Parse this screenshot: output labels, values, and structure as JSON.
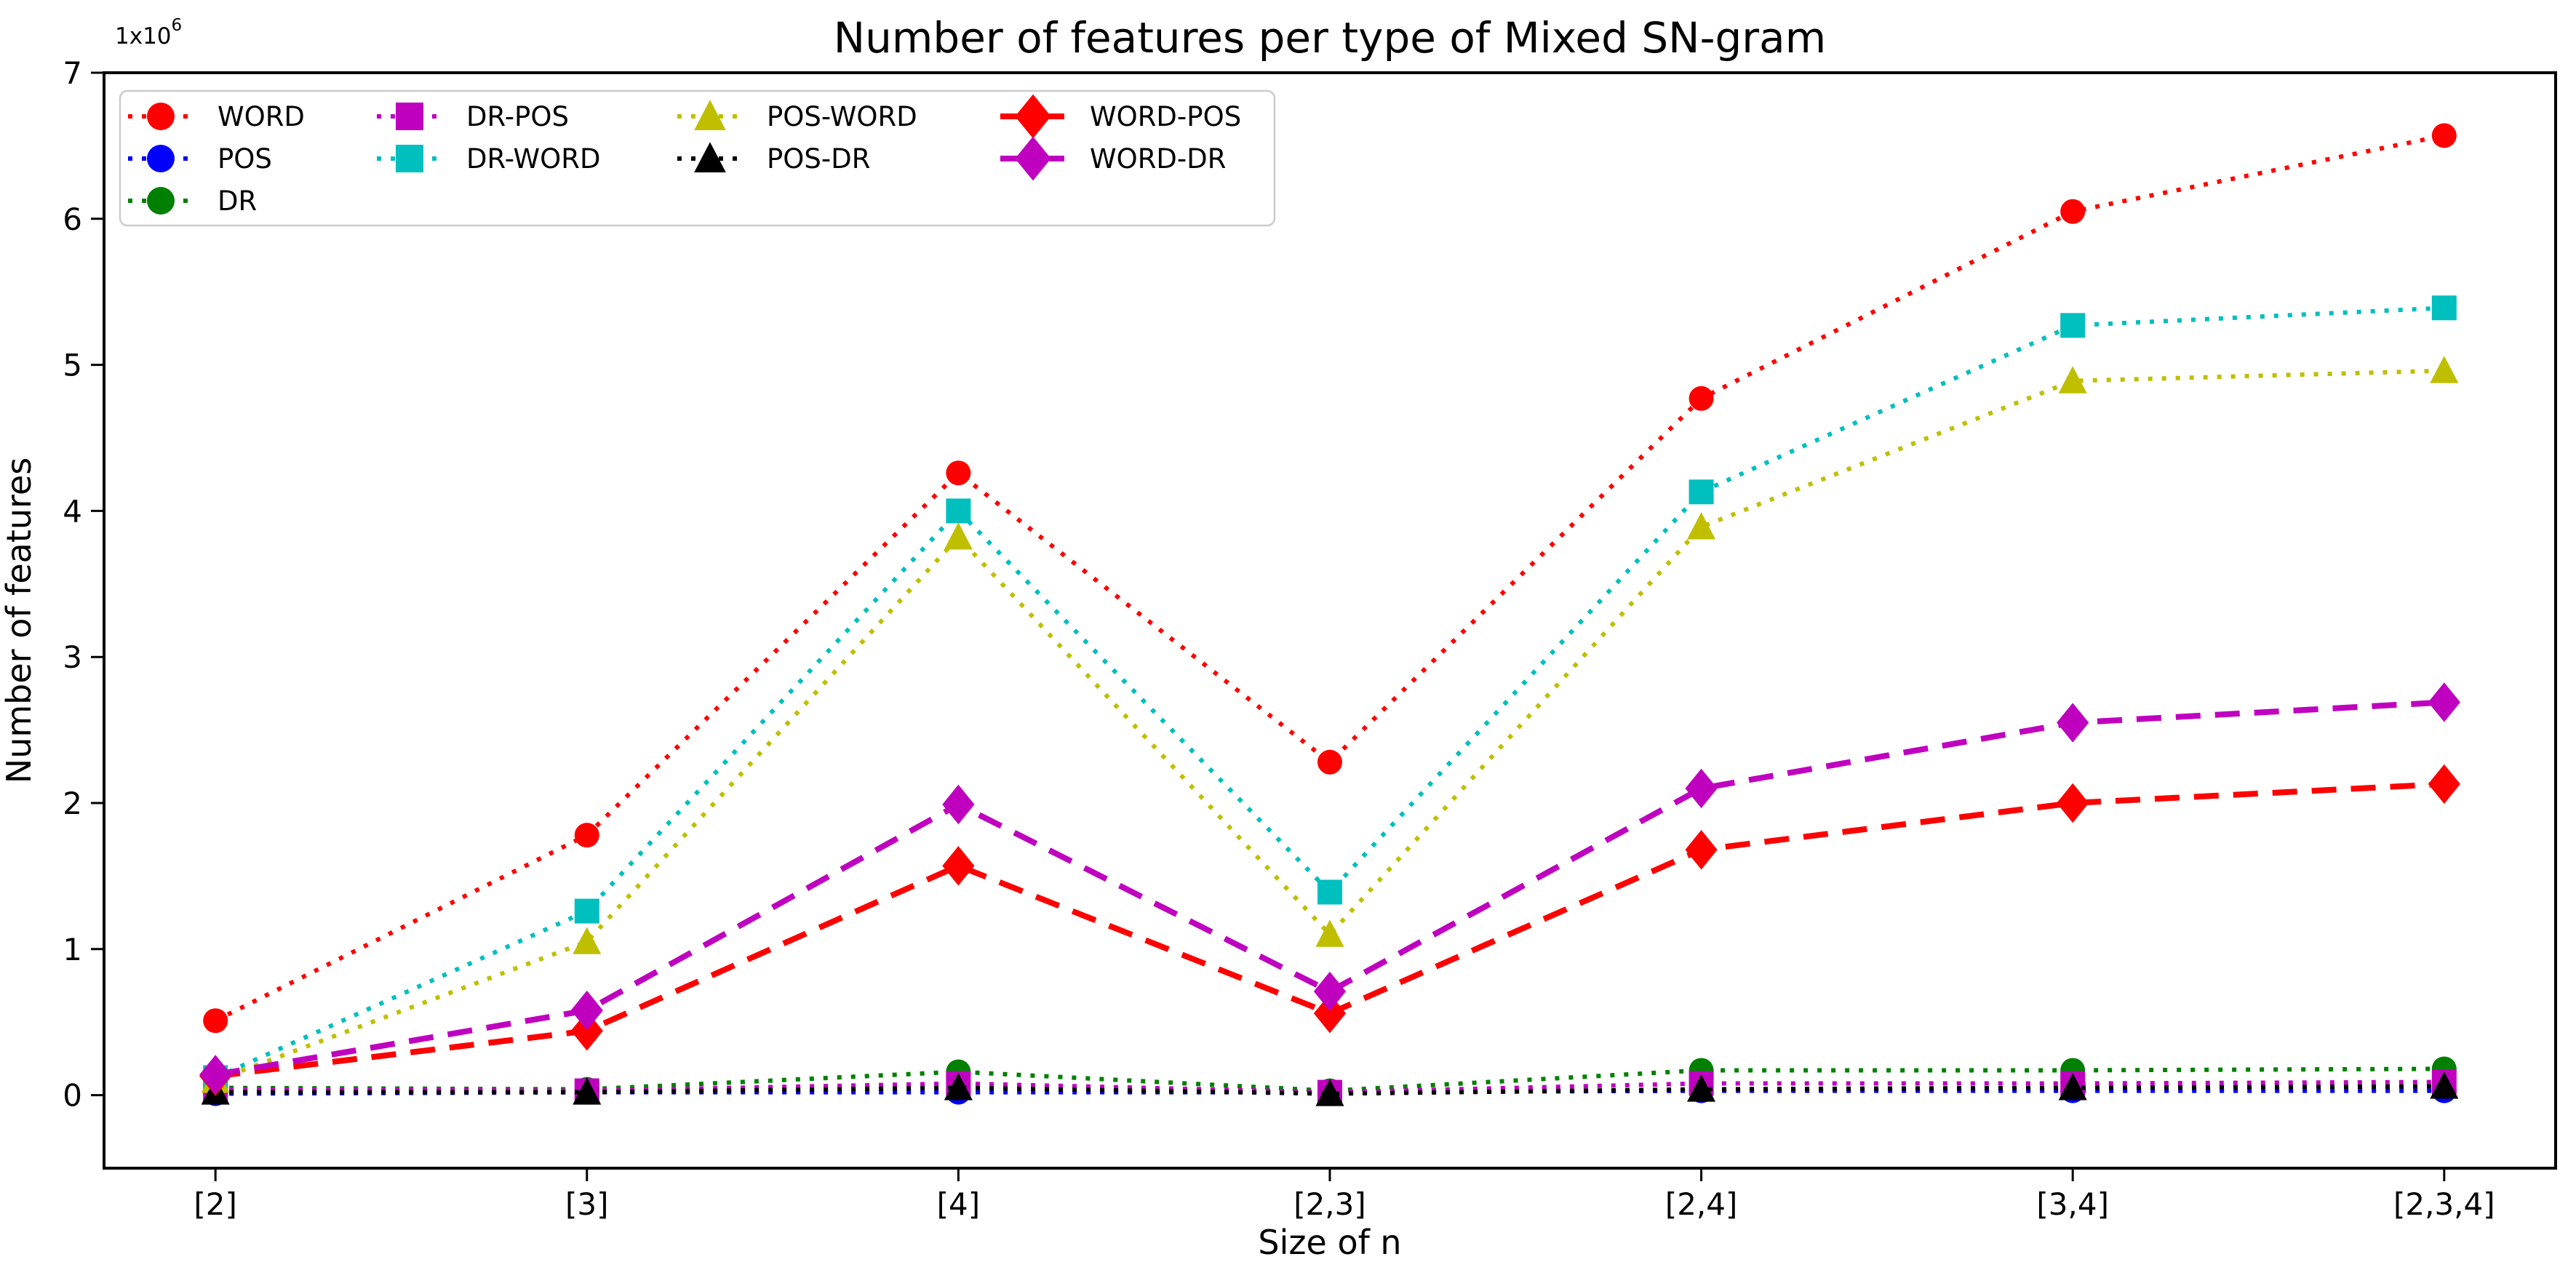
{
  "title": "Number of features per type of Mixed SN-gram",
  "axes": {
    "xlabel": "Size of n",
    "ylabel": "Number of features",
    "offset_text": "1x10",
    "offset_exp": "6",
    "x_ticks": [
      "[2]",
      "[3]",
      "[4]",
      "[2,3]",
      "[2,4]",
      "[3,4]",
      "[2,3,4]"
    ],
    "y_ticks": [
      "0",
      "1",
      "2",
      "3",
      "4",
      "5",
      "6",
      "7"
    ]
  },
  "chart_data": {
    "type": "line",
    "title": "Number of features per type of Mixed SN-gram",
    "xlabel": "Size of n",
    "ylabel": "Number of features",
    "y_unit_multiplier": "1x10^6",
    "ylim": [
      -0.5,
      7
    ],
    "grid": false,
    "legend_position": "upper-left",
    "categories": [
      "[2]",
      "[3]",
      "[4]",
      "[2,3]",
      "[2,4]",
      "[3,4]",
      "[2,3,4]"
    ],
    "legend_columns": [
      [
        "WORD",
        "POS",
        "DR"
      ],
      [
        "DR-POS",
        "DR-WORD"
      ],
      [
        "POS-WORD",
        "POS-DR"
      ],
      [
        "WORD-POS",
        "WORD-DR"
      ]
    ],
    "series": [
      {
        "name": "WORD",
        "color": "#ff0000",
        "marker": "circle",
        "line": "dotted",
        "values": [
          0.51,
          1.78,
          4.26,
          2.28,
          4.77,
          6.05,
          6.57
        ]
      },
      {
        "name": "POS",
        "color": "#0000ff",
        "marker": "circle",
        "line": "dotted",
        "values": [
          0.01,
          0.02,
          0.02,
          0.02,
          0.03,
          0.03,
          0.03
        ]
      },
      {
        "name": "DR",
        "color": "#008000",
        "marker": "circle",
        "line": "dotted",
        "values": [
          0.05,
          0.04,
          0.16,
          0.03,
          0.17,
          0.17,
          0.18
        ]
      },
      {
        "name": "DR-POS",
        "color": "#bf00bf",
        "marker": "square",
        "line": "dotted",
        "values": [
          0.04,
          0.03,
          0.08,
          0.02,
          0.08,
          0.08,
          0.09
        ]
      },
      {
        "name": "DR-WORD",
        "color": "#00bfbf",
        "marker": "square",
        "line": "dotted",
        "values": [
          0.12,
          1.26,
          4.0,
          1.39,
          4.13,
          5.27,
          5.39
        ]
      },
      {
        "name": "POS-WORD",
        "color": "#bfbf00",
        "marker": "triangle",
        "line": "dotted",
        "values": [
          0.1,
          1.05,
          3.82,
          1.1,
          3.89,
          4.89,
          4.96
        ]
      },
      {
        "name": "POS-DR",
        "color": "#000000",
        "marker": "triangle",
        "line": "dotted",
        "values": [
          0.02,
          0.02,
          0.05,
          0.01,
          0.04,
          0.05,
          0.06
        ]
      },
      {
        "name": "WORD-POS",
        "color": "#ff0000",
        "marker": "diamond",
        "line": "dashed",
        "values": [
          0.13,
          0.44,
          1.57,
          0.56,
          1.68,
          2.0,
          2.13
        ]
      },
      {
        "name": "WORD-DR",
        "color": "#bf00bf",
        "marker": "diamond",
        "line": "dashed",
        "values": [
          0.14,
          0.58,
          1.99,
          0.71,
          2.1,
          2.55,
          2.69
        ]
      }
    ]
  }
}
